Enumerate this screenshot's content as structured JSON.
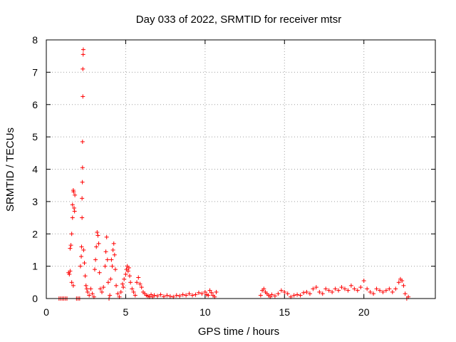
{
  "chart_data": {
    "type": "scatter",
    "title": "Day 033 of 2022, SRMTID for receiver mtsr",
    "xlabel": "GPS time / hours",
    "ylabel": "SRMTID / TECUs",
    "xlim": [
      0,
      24.5
    ],
    "ylim": [
      0,
      8
    ],
    "grid": true,
    "x_ticks": [
      0,
      5,
      10,
      15,
      20
    ],
    "y_ticks": [
      0,
      1,
      2,
      3,
      4,
      5,
      6,
      7,
      8
    ],
    "marker": "+",
    "color": "#ff0000",
    "series": [
      {
        "name": "mtsr",
        "points": [
          [
            0.8,
            0.0
          ],
          [
            0.9,
            0.0
          ],
          [
            1.0,
            0.0
          ],
          [
            1.1,
            0.0
          ],
          [
            1.2,
            0.0
          ],
          [
            1.3,
            0.0
          ],
          [
            1.4,
            0.8
          ],
          [
            1.45,
            0.75
          ],
          [
            1.5,
            0.85
          ],
          [
            1.5,
            1.55
          ],
          [
            1.55,
            1.65
          ],
          [
            1.6,
            2.0
          ],
          [
            1.65,
            2.5
          ],
          [
            1.65,
            2.9
          ],
          [
            1.7,
            3.35
          ],
          [
            1.72,
            3.3
          ],
          [
            1.75,
            2.8
          ],
          [
            1.78,
            2.7
          ],
          [
            1.8,
            3.2
          ],
          [
            1.6,
            0.5
          ],
          [
            1.7,
            0.4
          ],
          [
            1.9,
            0.0
          ],
          [
            2.0,
            0.0
          ],
          [
            2.1,
            0.0
          ],
          [
            2.15,
            1.0
          ],
          [
            2.2,
            1.3
          ],
          [
            2.22,
            1.6
          ],
          [
            2.25,
            2.5
          ],
          [
            2.25,
            3.1
          ],
          [
            2.27,
            3.6
          ],
          [
            2.28,
            4.05
          ],
          [
            2.28,
            4.85
          ],
          [
            2.3,
            6.25
          ],
          [
            2.3,
            7.1
          ],
          [
            2.32,
            7.55
          ],
          [
            2.33,
            7.7
          ],
          [
            2.35,
            1.5
          ],
          [
            2.4,
            1.1
          ],
          [
            2.45,
            0.7
          ],
          [
            2.5,
            0.4
          ],
          [
            2.55,
            0.3
          ],
          [
            2.6,
            0.2
          ],
          [
            2.7,
            0.1
          ],
          [
            2.8,
            0.3
          ],
          [
            2.9,
            0.15
          ],
          [
            3.0,
            0.05
          ],
          [
            3.05,
            0.9
          ],
          [
            3.1,
            1.2
          ],
          [
            3.15,
            1.6
          ],
          [
            3.2,
            2.05
          ],
          [
            3.25,
            1.95
          ],
          [
            3.3,
            1.7
          ],
          [
            3.35,
            0.8
          ],
          [
            3.4,
            0.3
          ],
          [
            3.5,
            0.2
          ],
          [
            3.6,
            0.35
          ],
          [
            3.7,
            1.0
          ],
          [
            3.75,
            1.45
          ],
          [
            3.8,
            1.9
          ],
          [
            3.85,
            1.2
          ],
          [
            3.9,
            0.5
          ],
          [
            3.95,
            0.0
          ],
          [
            4.0,
            0.1
          ],
          [
            4.05,
            0.6
          ],
          [
            4.1,
            1.2
          ],
          [
            4.15,
            1.0
          ],
          [
            4.2,
            1.5
          ],
          [
            4.25,
            1.7
          ],
          [
            4.3,
            1.35
          ],
          [
            4.35,
            0.9
          ],
          [
            4.4,
            0.4
          ],
          [
            4.5,
            0.15
          ],
          [
            4.6,
            0.05
          ],
          [
            4.7,
            0.2
          ],
          [
            4.8,
            0.45
          ],
          [
            4.85,
            0.35
          ],
          [
            4.9,
            0.6
          ],
          [
            5.0,
            0.75
          ],
          [
            5.05,
            0.9
          ],
          [
            5.1,
            1.0
          ],
          [
            5.15,
            0.85
          ],
          [
            5.2,
            0.95
          ],
          [
            5.25,
            0.7
          ],
          [
            5.3,
            0.5
          ],
          [
            5.4,
            0.3
          ],
          [
            5.5,
            0.2
          ],
          [
            5.6,
            0.1
          ],
          [
            5.7,
            0.5
          ],
          [
            5.8,
            0.65
          ],
          [
            5.9,
            0.45
          ],
          [
            6.0,
            0.35
          ],
          [
            6.1,
            0.2
          ],
          [
            6.2,
            0.15
          ],
          [
            6.3,
            0.1
          ],
          [
            6.4,
            0.08
          ],
          [
            6.5,
            0.05
          ],
          [
            6.6,
            0.12
          ],
          [
            6.7,
            0.05
          ],
          [
            6.8,
            0.1
          ],
          [
            7.0,
            0.08
          ],
          [
            7.2,
            0.12
          ],
          [
            7.4,
            0.06
          ],
          [
            7.6,
            0.1
          ],
          [
            7.8,
            0.07
          ],
          [
            8.0,
            0.05
          ],
          [
            8.2,
            0.1
          ],
          [
            8.4,
            0.08
          ],
          [
            8.6,
            0.12
          ],
          [
            8.8,
            0.1
          ],
          [
            9.0,
            0.15
          ],
          [
            9.2,
            0.1
          ],
          [
            9.4,
            0.12
          ],
          [
            9.6,
            0.18
          ],
          [
            9.8,
            0.15
          ],
          [
            10.0,
            0.2
          ],
          [
            10.1,
            0.12
          ],
          [
            10.2,
            0.1
          ],
          [
            10.3,
            0.25
          ],
          [
            10.4,
            0.18
          ],
          [
            10.5,
            0.1
          ],
          [
            10.6,
            0.05
          ],
          [
            10.7,
            0.2
          ],
          [
            13.5,
            0.1
          ],
          [
            13.6,
            0.25
          ],
          [
            13.7,
            0.3
          ],
          [
            13.8,
            0.2
          ],
          [
            13.9,
            0.15
          ],
          [
            14.0,
            0.1
          ],
          [
            14.1,
            0.05
          ],
          [
            14.2,
            0.12
          ],
          [
            14.4,
            0.08
          ],
          [
            14.6,
            0.15
          ],
          [
            14.8,
            0.25
          ],
          [
            15.0,
            0.2
          ],
          [
            15.2,
            0.15
          ],
          [
            15.4,
            0.05
          ],
          [
            15.6,
            0.1
          ],
          [
            15.8,
            0.12
          ],
          [
            16.0,
            0.1
          ],
          [
            16.2,
            0.18
          ],
          [
            16.4,
            0.2
          ],
          [
            16.6,
            0.15
          ],
          [
            16.8,
            0.3
          ],
          [
            17.0,
            0.35
          ],
          [
            17.2,
            0.2
          ],
          [
            17.4,
            0.15
          ],
          [
            17.6,
            0.3
          ],
          [
            17.8,
            0.25
          ],
          [
            18.0,
            0.2
          ],
          [
            18.2,
            0.3
          ],
          [
            18.4,
            0.25
          ],
          [
            18.6,
            0.35
          ],
          [
            18.8,
            0.3
          ],
          [
            19.0,
            0.25
          ],
          [
            19.2,
            0.4
          ],
          [
            19.4,
            0.3
          ],
          [
            19.6,
            0.25
          ],
          [
            19.8,
            0.35
          ],
          [
            20.0,
            0.55
          ],
          [
            20.2,
            0.3
          ],
          [
            20.4,
            0.2
          ],
          [
            20.6,
            0.15
          ],
          [
            20.8,
            0.3
          ],
          [
            21.0,
            0.25
          ],
          [
            21.2,
            0.2
          ],
          [
            21.4,
            0.25
          ],
          [
            21.6,
            0.3
          ],
          [
            21.8,
            0.2
          ],
          [
            22.0,
            0.3
          ],
          [
            22.2,
            0.5
          ],
          [
            22.3,
            0.6
          ],
          [
            22.4,
            0.55
          ],
          [
            22.5,
            0.4
          ],
          [
            22.6,
            0.15
          ],
          [
            22.7,
            0.0
          ],
          [
            22.8,
            0.05
          ]
        ]
      }
    ]
  }
}
